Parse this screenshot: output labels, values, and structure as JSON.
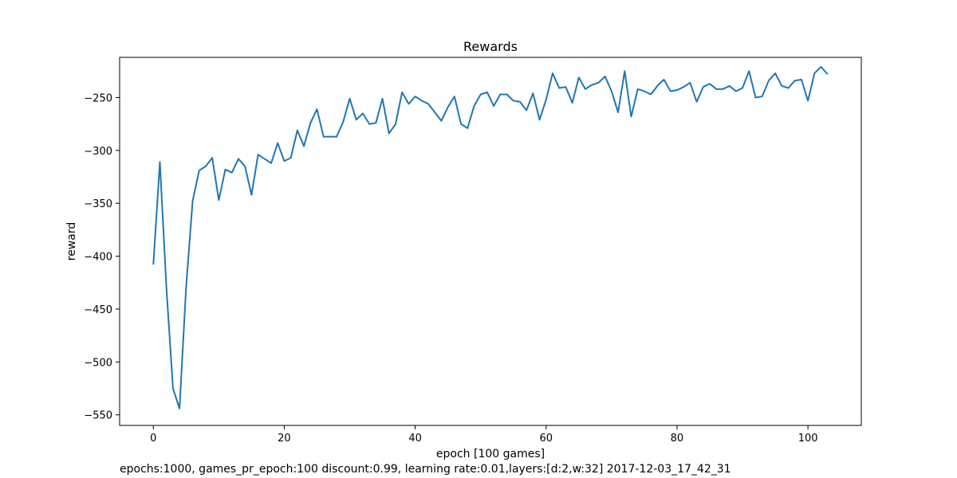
{
  "chart_data": {
    "type": "line",
    "title": "Rewards",
    "xlabel": "epoch [100 games]",
    "ylabel": "reward",
    "xlim": [
      -5.15,
      108.15
    ],
    "ylim": [
      -560,
      -212
    ],
    "x_ticks": [
      0,
      20,
      40,
      60,
      80,
      100
    ],
    "y_ticks": [
      -550,
      -500,
      -450,
      -400,
      -350,
      -300,
      -250
    ],
    "x_tick_labels": [
      "0",
      "20",
      "40",
      "60",
      "80",
      "100"
    ],
    "y_tick_labels": [
      "−550",
      "−500",
      "−450",
      "−400",
      "−350",
      "−300",
      "−250"
    ],
    "grid": false,
    "line_color": "#1f77b4",
    "series": [
      {
        "x": [
          0,
          1,
          2,
          3,
          4,
          5,
          6,
          7,
          8,
          9,
          10,
          11,
          12,
          13,
          14,
          15,
          16,
          17,
          18,
          19,
          20,
          21,
          22,
          23,
          24,
          25,
          26,
          27,
          28,
          29,
          30,
          31,
          32,
          33,
          34,
          35,
          36,
          37,
          38,
          39,
          40,
          41,
          42,
          43,
          44,
          45,
          46,
          47,
          48,
          49,
          50,
          51,
          52,
          53,
          54,
          55,
          56,
          57,
          58,
          59,
          60,
          61,
          62,
          63,
          64,
          65,
          66,
          67,
          68,
          69,
          70,
          71,
          72,
          73,
          74,
          75,
          76,
          77,
          78,
          79,
          80,
          81,
          82,
          83,
          84,
          85,
          86,
          87,
          88,
          89,
          90,
          91,
          92,
          93,
          94,
          95,
          96,
          97,
          98,
          99,
          100,
          101,
          102,
          103
        ],
        "values": [
          -408,
          -311,
          -430,
          -525,
          -544,
          -430,
          -348,
          -319,
          -315,
          -307,
          -347,
          -318,
          -321,
          -308,
          -315,
          -342,
          -304,
          -308,
          -312,
          -293,
          -310,
          -307,
          -281,
          -296,
          -274,
          -261,
          -287,
          -287,
          -287,
          -273,
          -251,
          -271,
          -265,
          -275,
          -274,
          -251,
          -284,
          -275,
          -245,
          -256,
          -249,
          -253,
          -256,
          -264,
          -272,
          -259,
          -249,
          -275,
          -279,
          -258,
          -247,
          -245,
          -258,
          -247,
          -247,
          -253,
          -254,
          -262,
          -246,
          -271,
          -252,
          -227,
          -241,
          -240,
          -255,
          -231,
          -242,
          -238,
          -236,
          -230,
          -244,
          -264,
          -225,
          -268,
          -242,
          -244,
          -247,
          -239,
          -233,
          -244,
          -243,
          -240,
          -236,
          -254,
          -240,
          -237,
          -242,
          -242,
          -239,
          -244,
          -241,
          -225,
          -250,
          -249,
          -234,
          -227,
          -239,
          -241,
          -234,
          -233,
          -253,
          -227,
          -221,
          -228
        ]
      }
    ]
  },
  "footer": {
    "caption": "epochs:1000, games_pr_epoch:100 discount:0.99, learning rate:0.01,layers:[d:2,w:32] 2017-12-03_17_42_31"
  }
}
